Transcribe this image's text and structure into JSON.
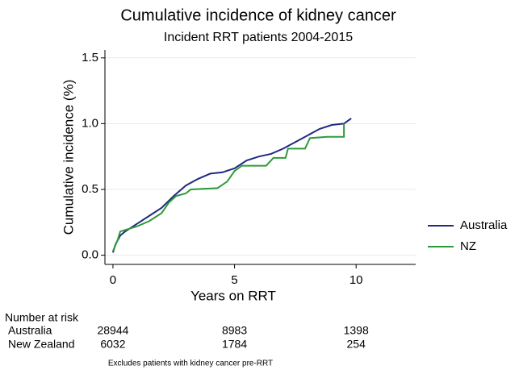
{
  "chart_data": {
    "type": "line",
    "title": "Cumulative incidence of kidney cancer",
    "subtitle": "Incident RRT patients 2004-2015",
    "x_label": "Years on RRT",
    "y_label": "Cumulative incidence (%)",
    "xlim": [
      -0.33,
      12.45
    ],
    "ylim": [
      -0.07,
      1.56
    ],
    "xticks": [
      0,
      5,
      10
    ],
    "yticks": [
      {
        "value": 0,
        "label": "0.0"
      },
      {
        "value": 0.5,
        "label": "0.5"
      },
      {
        "value": 1,
        "label": "1.0"
      },
      {
        "value": 1.5,
        "label": "1.5"
      }
    ],
    "grid": true,
    "legend": "right",
    "series": [
      {
        "name": "Australia",
        "color": "#1f2a80",
        "x": [
          0,
          0.1,
          0.3,
          0.5,
          1,
          1.5,
          2,
          2.5,
          3,
          3.5,
          4,
          4.5,
          5,
          5.5,
          6,
          6.5,
          7,
          7.5,
          8,
          8.5,
          9,
          9.5,
          9.8
        ],
        "values": [
          0.02,
          0.08,
          0.15,
          0.18,
          0.24,
          0.3,
          0.36,
          0.45,
          0.53,
          0.58,
          0.62,
          0.63,
          0.66,
          0.72,
          0.75,
          0.77,
          0.81,
          0.86,
          0.91,
          0.96,
          0.99,
          1.0,
          1.04
        ]
      },
      {
        "name": "NZ",
        "color": "#2e9a3a",
        "x": [
          0,
          0.2,
          0.3,
          1,
          1.5,
          2,
          2.3,
          2.6,
          3,
          3.2,
          4.3,
          4.7,
          5,
          5.3,
          6.3,
          6.6,
          7.1,
          7.2,
          7.9,
          8.1,
          8.8,
          9.5,
          9.5
        ],
        "values": [
          0.03,
          0.12,
          0.18,
          0.22,
          0.26,
          0.32,
          0.4,
          0.45,
          0.47,
          0.5,
          0.51,
          0.56,
          0.64,
          0.68,
          0.68,
          0.74,
          0.74,
          0.81,
          0.81,
          0.89,
          0.9,
          0.9,
          1.0
        ]
      }
    ]
  },
  "risk_table": {
    "title": "Number at risk",
    "rows": [
      {
        "label": "Australia",
        "counts": [
          "28944",
          "8983",
          "1398"
        ]
      },
      {
        "label": "New Zealand",
        "counts": [
          "6032",
          "1784",
          "254"
        ]
      }
    ]
  },
  "footnote": "Excludes patients with kidney cancer pre-RRT"
}
